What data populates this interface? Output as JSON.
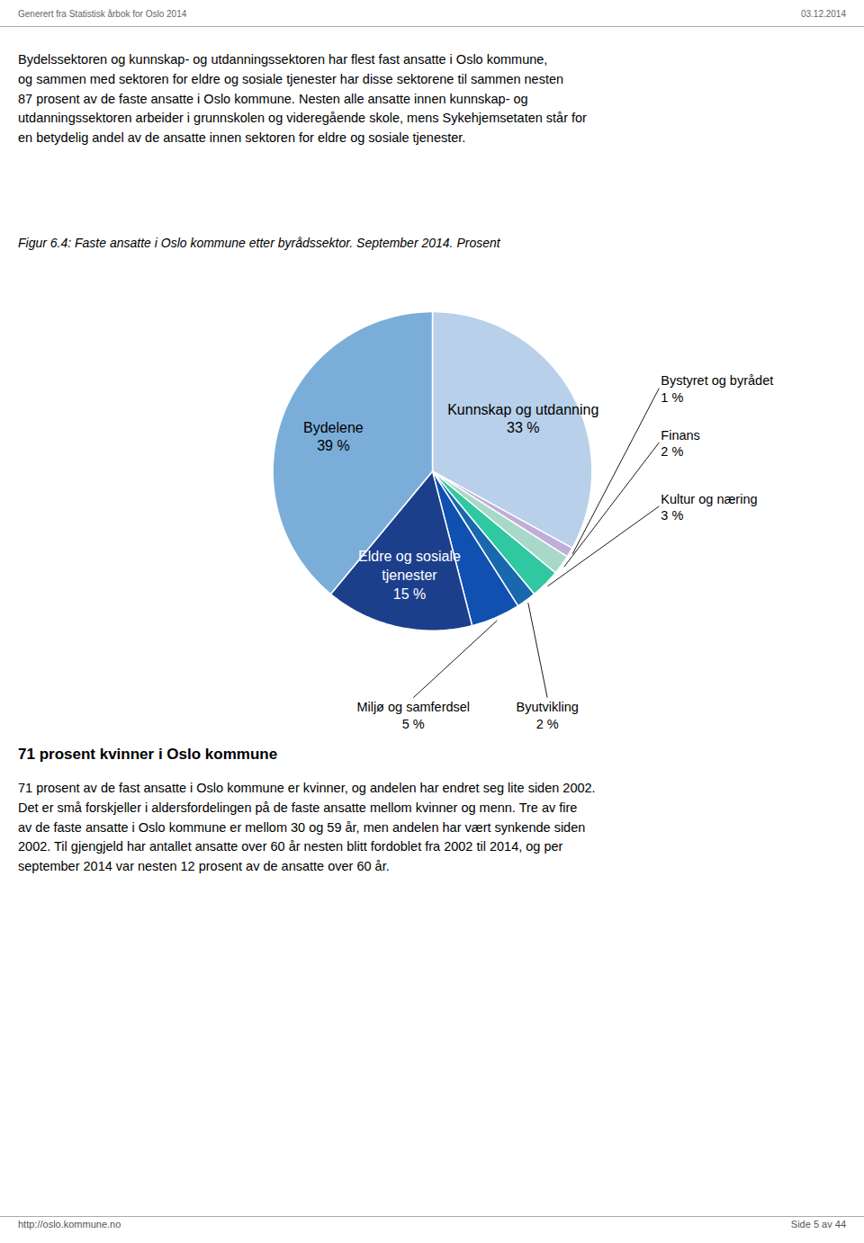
{
  "header_left": "Generert fra Statistisk årbok for Oslo 2014",
  "header_right": "03.12.2014",
  "body_text": "Bydelssektoren og kunnskap- og utdanningssektoren har flest fast ansatte i Oslo kommune,\nog sammen med sektoren for eldre og sosiale tjenester har disse sektorene til sammen nesten\n87 prosent av de faste ansatte i Oslo kommune. Nesten alle ansatte innen kunnskap- og\nutdanningssektoren arbeider i grunnskolen og videregående skole, mens Sykehjemsetaten står for\nen betydelig andel av de ansatte innen sektoren for eldre og sosiale tjenester.",
  "bottom_heading": "71 prosent kvinner i Oslo kommune",
  "bottom_text": "71 prosent av de fast ansatte i Oslo kommune er kvinner, og andelen har endret seg lite siden 2002.\nDet er små forskjeller i aldersfordelingen på de faste ansatte mellom kvinner og menn. Tre av fire\nav de faste ansatte i Oslo kommune er mellom 30 og 59 år, men andelen har vært synkende siden\n2002. Til gjengjeld har antallet ansatte over 60 år nesten blitt fordoblet fra 2002 til 2014, og per\nseptember 2014 var nesten 12 prosent av de ansatte over 60 år.",
  "footer_left": "http://oslo.kommune.no",
  "footer_right": "Side 5 av 44",
  "chart_data": {
    "type": "pie",
    "title": "Figur 6.4: Faste ansatte i Oslo kommune etter byrådssektor. September 2014. Prosent",
    "categories": [
      "Kunnskap og utdanning",
      "Bystyret og byrådet",
      "Finans",
      "Kultur og næring",
      "Byutvikling",
      "Miljø og samferdsel",
      "Eldre og sosiale\ntjenester",
      "Bydelene"
    ],
    "values": [
      33,
      1,
      2,
      3,
      2,
      5,
      15,
      39
    ],
    "value_labels": [
      "33 %",
      "1 %",
      "2 %",
      "3 %",
      "2 %",
      "5 %",
      "15 %",
      "39 %"
    ],
    "colors": [
      "#b8d0ea",
      "#c0aed8",
      "#a8d8c8",
      "#30c8a0",
      "#1868b0",
      "#1050b0",
      "#1c3f8c",
      "#7aaed8"
    ],
    "data_labels": true
  }
}
